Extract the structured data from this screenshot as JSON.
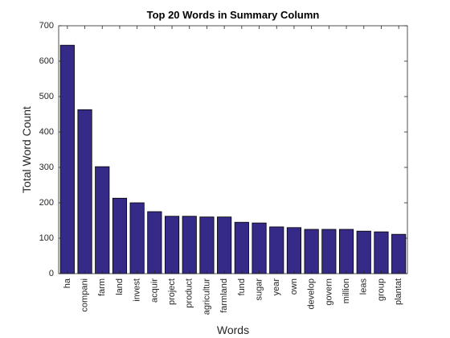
{
  "chart_data": {
    "type": "bar",
    "title": "Top 20 Words in Summary Column",
    "xlabel": "Words",
    "ylabel": "Total Word Count",
    "categories": [
      "ha",
      "compani",
      "farm",
      "land",
      "invest",
      "acquir",
      "project",
      "product",
      "agricultur",
      "farmland",
      "fund",
      "sugar",
      "year",
      "own",
      "develop",
      "govern",
      "million",
      "leas",
      "group",
      "plantat"
    ],
    "values": [
      645,
      463,
      302,
      213,
      200,
      175,
      162,
      162,
      160,
      160,
      145,
      143,
      132,
      130,
      125,
      125,
      125,
      120,
      118,
      111
    ],
    "color": "#352a87",
    "ylim": [
      0,
      700
    ],
    "yticks": [
      0,
      100,
      200,
      300,
      400,
      500,
      600,
      700
    ],
    "grid": false
  }
}
